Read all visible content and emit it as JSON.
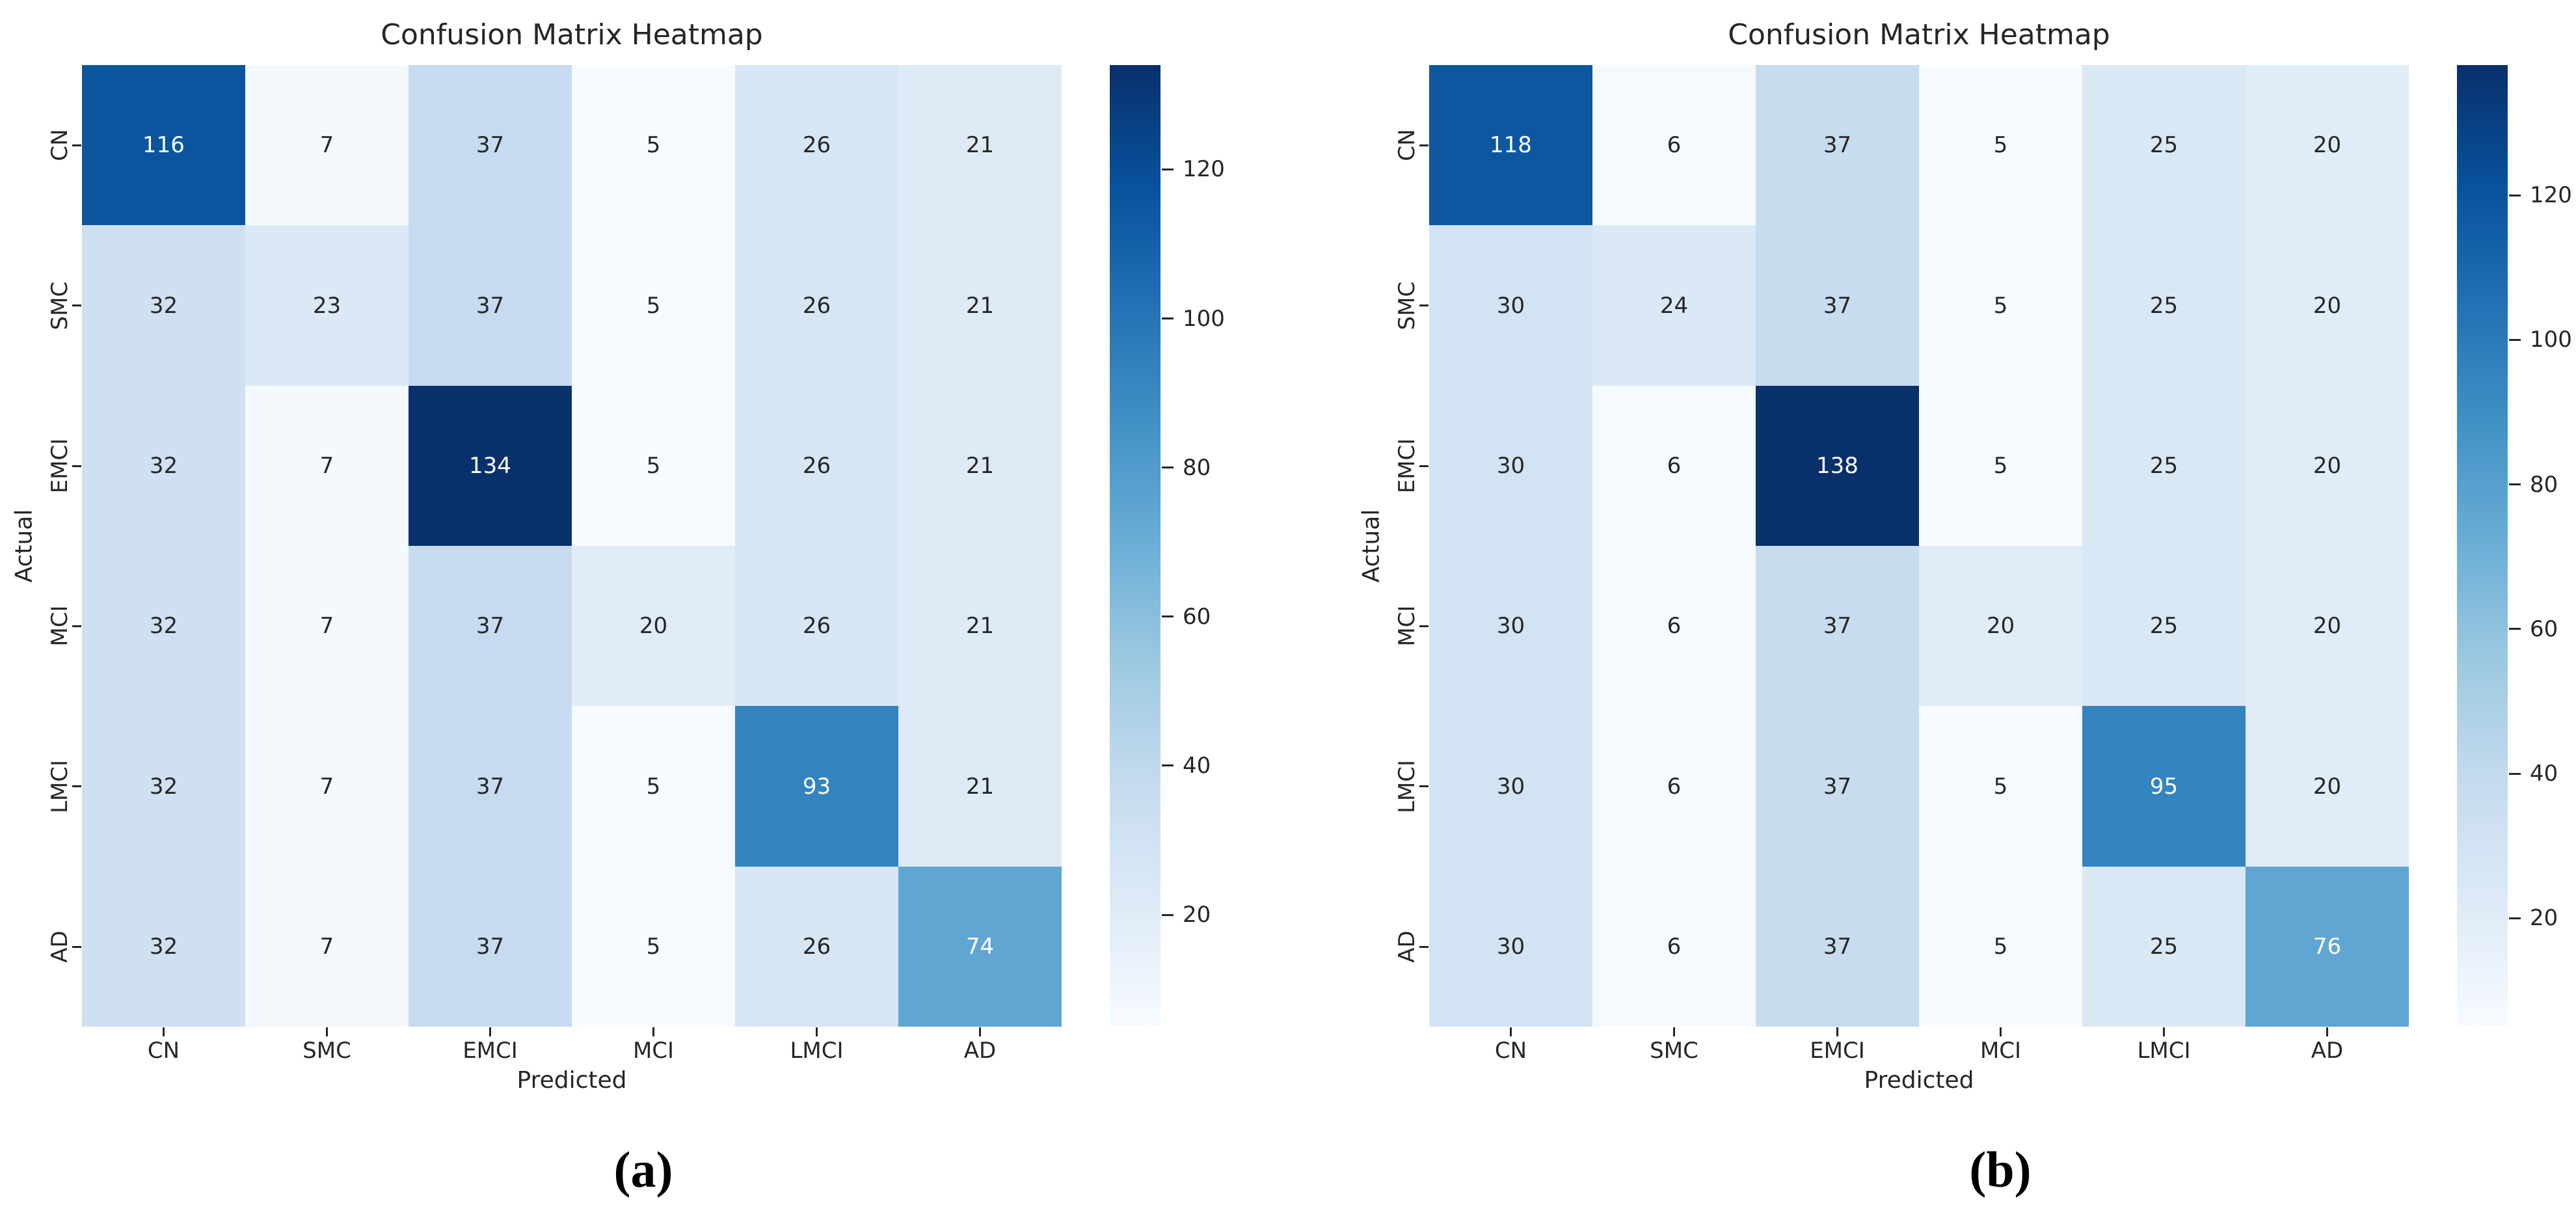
{
  "figure": {
    "background": "#ffffff",
    "axis_text_color": "#262626",
    "annot_dark_color": "#262626",
    "annot_light_color": "#ffffff",
    "colormap": {
      "name": "Blues",
      "stops": [
        "#f7fbff",
        "#deebf7",
        "#c6dbef",
        "#9ecae1",
        "#6baed6",
        "#4292c6",
        "#2171b5",
        "#08519c",
        "#08306b"
      ]
    }
  },
  "chart_data": [
    {
      "type": "heatmap",
      "caption": "(a)",
      "title": "Confusion Matrix Heatmap",
      "xlabel": "Predicted",
      "ylabel": "Actual",
      "x_categories": [
        "CN",
        "SMC",
        "EMCI",
        "MCI",
        "LMCI",
        "AD"
      ],
      "y_categories": [
        "CN",
        "SMC",
        "EMCI",
        "MCI",
        "LMCI",
        "AD"
      ],
      "values": [
        [
          116,
          7,
          37,
          5,
          26,
          21
        ],
        [
          32,
          23,
          37,
          5,
          26,
          21
        ],
        [
          32,
          7,
          134,
          5,
          26,
          21
        ],
        [
          32,
          7,
          37,
          20,
          26,
          21
        ],
        [
          32,
          7,
          37,
          5,
          93,
          21
        ],
        [
          32,
          7,
          37,
          5,
          26,
          74
        ]
      ],
      "vmin": 5,
      "vmax": 134,
      "colorbar_ticks": [
        20,
        40,
        60,
        80,
        100,
        120
      ],
      "colormap": "Blues",
      "legend_position": "right-colorbar",
      "grid": false,
      "annotated": true
    },
    {
      "type": "heatmap",
      "caption": "(b)",
      "title": "Confusion Matrix Heatmap",
      "xlabel": "Predicted",
      "ylabel": "Actual",
      "x_categories": [
        "CN",
        "SMC",
        "EMCI",
        "MCI",
        "LMCI",
        "AD"
      ],
      "y_categories": [
        "CN",
        "SMC",
        "EMCI",
        "MCI",
        "LMCI",
        "AD"
      ],
      "values": [
        [
          118,
          6,
          37,
          5,
          25,
          20
        ],
        [
          30,
          24,
          37,
          5,
          25,
          20
        ],
        [
          30,
          6,
          138,
          5,
          25,
          20
        ],
        [
          30,
          6,
          37,
          20,
          25,
          20
        ],
        [
          30,
          6,
          37,
          5,
          95,
          20
        ],
        [
          30,
          6,
          37,
          5,
          25,
          76
        ]
      ],
      "vmin": 5,
      "vmax": 138,
      "colorbar_ticks": [
        20,
        40,
        60,
        80,
        100,
        120
      ],
      "colormap": "Blues",
      "legend_position": "right-colorbar",
      "grid": false,
      "annotated": true
    }
  ]
}
